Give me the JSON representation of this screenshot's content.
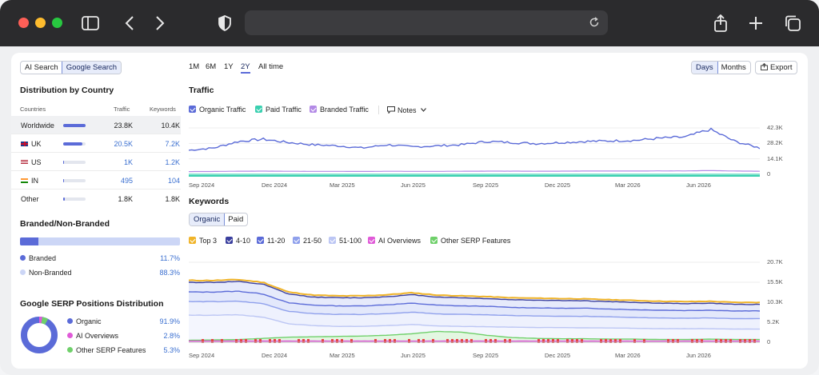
{
  "browser": {
    "url": ""
  },
  "left": {
    "search_tabs": [
      "AI Search",
      "Google Search"
    ],
    "distribution_title": "Distribution by Country",
    "table_headers": {
      "countries": "Countries",
      "traffic": "Traffic",
      "keywords": "Keywords"
    },
    "rows": [
      {
        "name": "Worldwide",
        "traffic": "23.8K",
        "keywords": "10.4K",
        "share": 1.0
      },
      {
        "name": "UK",
        "traffic": "20.5K",
        "keywords": "7.2K",
        "share": 0.86
      },
      {
        "name": "US",
        "traffic": "1K",
        "keywords": "1.2K",
        "share": 0.05
      },
      {
        "name": "IN",
        "traffic": "495",
        "keywords": "104",
        "share": 0.03
      },
      {
        "name": "Other",
        "traffic": "1.8K",
        "keywords": "1.8K",
        "share": 0.07
      }
    ],
    "branded_title": "Branded/Non-Branded",
    "branded": {
      "label": "Branded",
      "pct": "11.7%",
      "share": 0.117
    },
    "nonbranded": {
      "label": "Non-Branded",
      "pct": "88.3%"
    },
    "serp_title": "Google SERP Positions Distribution",
    "serp": [
      {
        "label": "Organic",
        "pct": "91.9%",
        "color": "#5b6bd8"
      },
      {
        "label": "AI Overviews",
        "pct": "2.8%",
        "color": "#e05ad8"
      },
      {
        "label": "Other SERP Features",
        "pct": "5.3%",
        "color": "#6fd06a"
      }
    ]
  },
  "top": {
    "periods": [
      "1M",
      "6M",
      "1Y",
      "2Y",
      "All time"
    ],
    "active_period": "2Y",
    "granularity": [
      "Days",
      "Months"
    ],
    "export_label": "Export"
  },
  "traffic": {
    "title": "Traffic",
    "legend": [
      {
        "label": "Organic Traffic",
        "color": "#5b6bd8"
      },
      {
        "label": "Paid Traffic",
        "color": "#3ad0b0"
      },
      {
        "label": "Branded Traffic",
        "color": "#b38ae6"
      }
    ],
    "notes_label": "Notes",
    "y_labels": [
      "42.3K",
      "28.2K",
      "14.1K",
      "0"
    ],
    "x_labels": [
      "Sep 2024",
      "Dec 2024",
      "Mar 2025",
      "Jun 2025",
      "Sep 2025",
      "Dec 2025",
      "Mar 2026",
      "Jun 2026"
    ]
  },
  "keywords": {
    "title": "Keywords",
    "tabs": [
      "Organic",
      "Paid"
    ],
    "legend": [
      {
        "label": "Top 3",
        "color": "#f0b429"
      },
      {
        "label": "4-10",
        "color": "#3a3f9e"
      },
      {
        "label": "11-20",
        "color": "#5b6bd8"
      },
      {
        "label": "21-50",
        "color": "#8fa0ec"
      },
      {
        "label": "51-100",
        "color": "#bcc6f4"
      },
      {
        "label": "AI Overviews",
        "color": "#e05ad8"
      },
      {
        "label": "Other SERP Features",
        "color": "#6fd06a"
      }
    ],
    "y_labels": [
      "20.7K",
      "15.5K",
      "10.3K",
      "5.2K",
      "0"
    ],
    "x_labels": [
      "Sep 2024",
      "Dec 2024",
      "Mar 2025",
      "Jun 2025",
      "Sep 2025",
      "Dec 2025",
      "Mar 2026",
      "Jun 2026"
    ]
  },
  "chart_data": [
    {
      "type": "line",
      "title": "Traffic",
      "x": [
        "Sep 2024",
        "Oct 2024",
        "Nov 2024",
        "Dec 2024",
        "Jan 2025",
        "Feb 2025",
        "Mar 2025",
        "Apr 2025",
        "May 2025",
        "Jun 2025",
        "Jul 2025",
        "Aug 2025",
        "Sep 2025",
        "Oct 2025",
        "Nov 2025",
        "Dec 2025",
        "Jan 2026",
        "Feb 2026",
        "Mar 2026",
        "Apr 2026",
        "May 2026",
        "Jun 2026",
        "Jul 2026",
        "Aug 2026"
      ],
      "series": [
        {
          "name": "Organic Traffic",
          "values": [
            22000,
            24000,
            30000,
            32000,
            29000,
            27000,
            26000,
            24000,
            27000,
            25000,
            26000,
            27000,
            30000,
            29000,
            28000,
            29000,
            30000,
            30500,
            31000,
            33000,
            34000,
            41000,
            30000,
            24000
          ]
        },
        {
          "name": "Paid Traffic",
          "values": [
            0,
            0,
            0,
            0,
            0,
            0,
            0,
            0,
            0,
            0,
            0,
            0,
            0,
            0,
            0,
            0,
            0,
            0,
            0,
            0,
            0,
            0,
            0,
            0
          ]
        },
        {
          "name": "Branded Traffic",
          "values": [
            2500,
            2600,
            2800,
            2900,
            2800,
            2700,
            2700,
            2600,
            2800,
            2700,
            2700,
            2800,
            2900,
            2900,
            2800,
            2900,
            3000,
            3000,
            3000,
            3100,
            3100,
            3400,
            3000,
            2800
          ]
        }
      ],
      "ylim": [
        0,
        42300
      ]
    },
    {
      "type": "area",
      "title": "Keywords",
      "x": [
        "Sep 2024",
        "Oct 2024",
        "Nov 2024",
        "Dec 2024",
        "Jan 2025",
        "Feb 2025",
        "Mar 2025",
        "Apr 2025",
        "May 2025",
        "Jun 2025",
        "Jul 2025",
        "Aug 2025",
        "Sep 2025",
        "Oct 2025",
        "Nov 2025",
        "Dec 2025",
        "Jan 2026",
        "Feb 2026",
        "Mar 2026",
        "Apr 2026",
        "May 2026",
        "Jun 2026",
        "Jul 2026",
        "Aug 2026"
      ],
      "series": [
        {
          "name": "Top 3",
          "values": [
            16000,
            16000,
            16200,
            15500,
            13000,
            12200,
            12000,
            12000,
            12300,
            12800,
            12200,
            12000,
            11800,
            11500,
            11400,
            11300,
            11200,
            11000,
            10800,
            10600,
            10500,
            10600,
            10300,
            10300
          ]
        },
        {
          "name": "4-10",
          "values": [
            15500,
            15500,
            15700,
            15000,
            12500,
            11700,
            11500,
            11500,
            11800,
            12300,
            11700,
            11500,
            11300,
            11000,
            10900,
            10800,
            10700,
            10500,
            10300,
            10100,
            10000,
            10100,
            9800,
            9800
          ]
        },
        {
          "name": "11-20",
          "values": [
            13000,
            13000,
            13200,
            12500,
            10200,
            9600,
            9400,
            9400,
            9700,
            10100,
            9600,
            9400,
            9300,
            9000,
            8900,
            8800,
            8800,
            8600,
            8400,
            8300,
            8200,
            8300,
            8100,
            8100
          ]
        },
        {
          "name": "21-50",
          "values": [
            10500,
            10500,
            10600,
            10000,
            8000,
            7400,
            7200,
            7200,
            7400,
            7800,
            7300,
            7200,
            7100,
            6900,
            6800,
            6700,
            6700,
            6600,
            6400,
            6300,
            6200,
            6300,
            6100,
            6100
          ]
        },
        {
          "name": "51-100",
          "values": [
            7000,
            7000,
            7100,
            6500,
            4800,
            4300,
            4100,
            4100,
            4300,
            4600,
            4200,
            4100,
            4000,
            3900,
            3800,
            3800,
            3700,
            3700,
            3600,
            3500,
            3500,
            3500,
            3400,
            3400
          ]
        },
        {
          "name": "AI Overviews",
          "values": [
            300,
            300,
            300,
            300,
            300,
            300,
            300,
            300,
            300,
            300,
            300,
            300,
            300,
            300,
            300,
            300,
            300,
            300,
            300,
            300,
            300,
            300,
            300,
            300
          ]
        },
        {
          "name": "Other SERP Features",
          "values": [
            500,
            600,
            700,
            1000,
            1300,
            1400,
            1500,
            1600,
            1800,
            2200,
            2800,
            2600,
            1800,
            1200,
            1000,
            900,
            900,
            800,
            800,
            700,
            700,
            800,
            700,
            700
          ]
        }
      ],
      "ylim": [
        0,
        20700
      ]
    }
  ]
}
